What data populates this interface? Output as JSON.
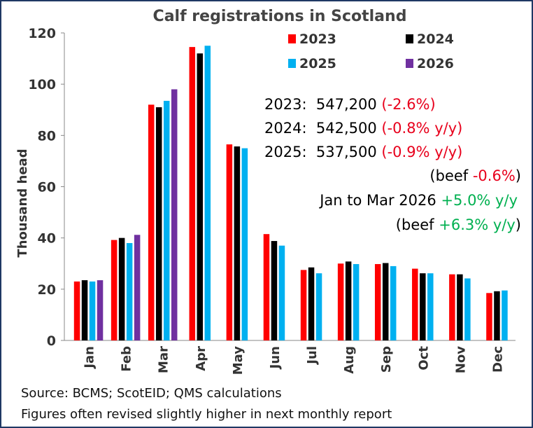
{
  "chart_data": {
    "type": "bar",
    "title": "Calf registrations in Scotland",
    "y_label": "Thousand head",
    "categories": [
      "Jan",
      "Feb",
      "Mar",
      "Apr",
      "May",
      "Jun",
      "Jul",
      "Aug",
      "Sep",
      "Oct",
      "Nov",
      "Dec"
    ],
    "series": [
      {
        "name": "2023",
        "color": "#ff0000",
        "values": [
          23,
          39.2,
          92,
          114.5,
          76.5,
          41.5,
          27.5,
          30,
          29.8,
          28,
          25.8,
          18.5
        ]
      },
      {
        "name": "2024",
        "color": "#000000",
        "values": [
          23.5,
          40,
          91,
          112,
          75.7,
          38.8,
          28.5,
          30.8,
          30.2,
          26.2,
          25.8,
          19.2
        ]
      },
      {
        "name": "2025",
        "color": "#00b0f0",
        "values": [
          23,
          38,
          93.5,
          115,
          75,
          37,
          26.2,
          29.8,
          29,
          26.2,
          24.2,
          19.5
        ]
      },
      {
        "name": "2026",
        "color": "#7030a0",
        "values": [
          23.5,
          41.2,
          98,
          null,
          null,
          null,
          null,
          null,
          null,
          null,
          null,
          null
        ]
      }
    ],
    "ylim": [
      0,
      120
    ],
    "yticks": [
      0,
      20,
      40,
      60,
      80,
      100,
      120
    ],
    "annotations": [
      [
        "2023:  547,200 ",
        "(-2.6%)"
      ],
      [
        "2024:  542,500 ",
        "(-0.8% y/y)"
      ],
      [
        "2025:  537,500 ",
        "(-0.9% y/y)"
      ],
      [
        "(beef ",
        "-0.6%",
        ")"
      ],
      [
        "Jan to Mar 2026 ",
        "+5.0% y/y"
      ],
      [
        "(beef ",
        "+6.3% y/y",
        ")"
      ]
    ],
    "source": [
      "Source: BCMS; ScotEID; QMS calculations",
      "Figures often revised slightly higher in next monthly report"
    ]
  }
}
